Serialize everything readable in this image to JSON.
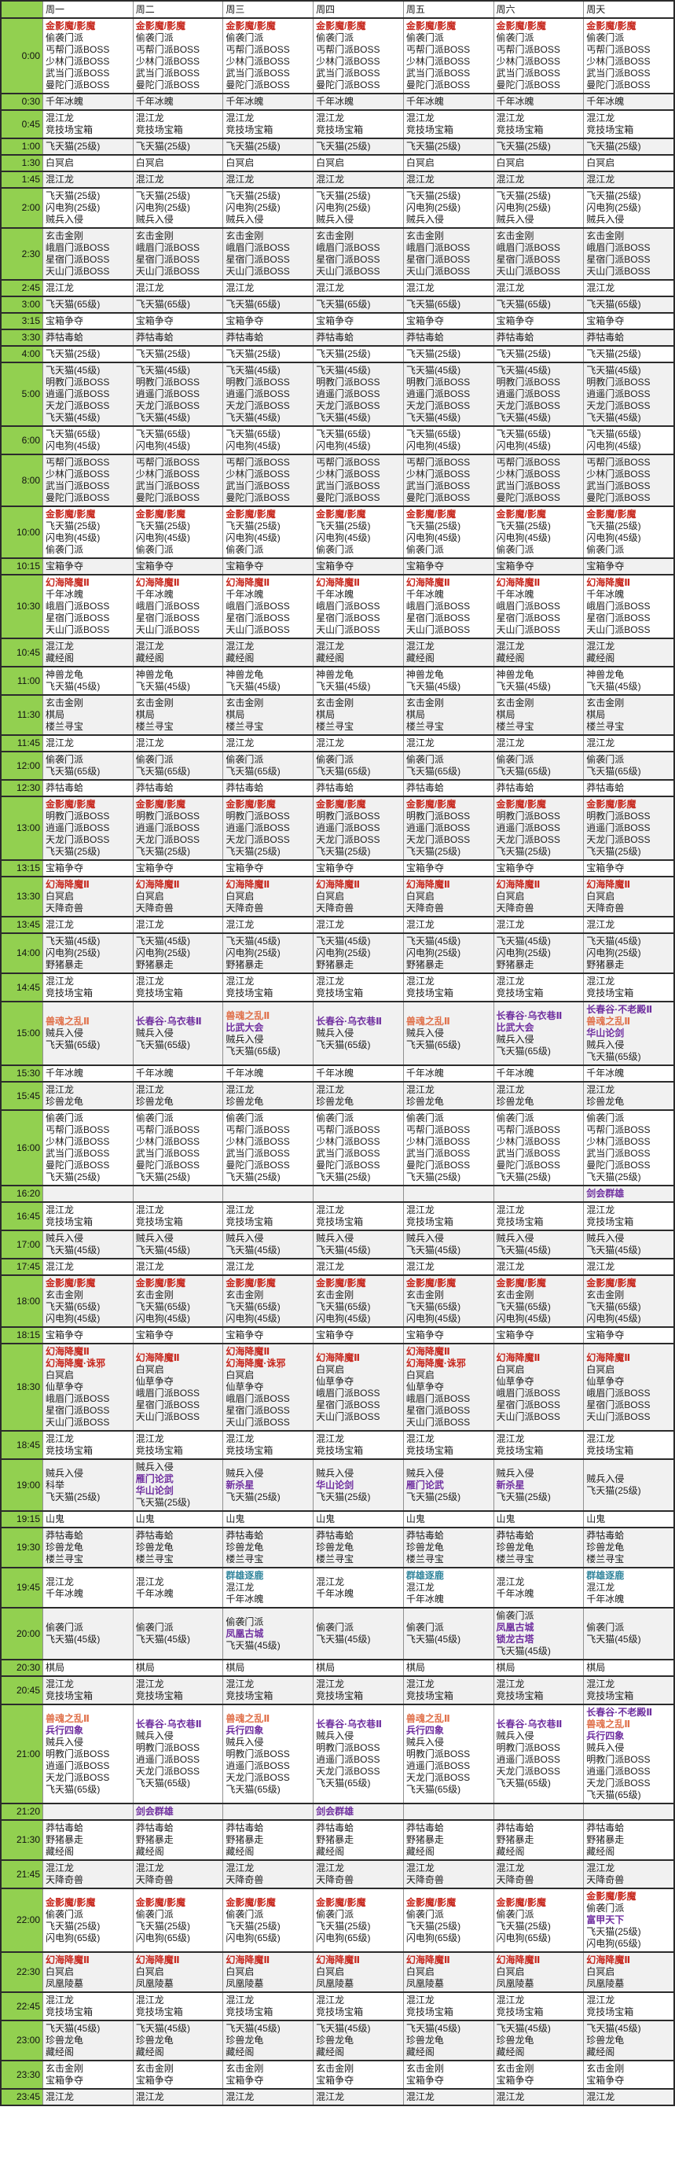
{
  "colors": {
    "red": "#c7281e",
    "orange": "#e0714b",
    "purple": "#7030a0",
    "blue": "#31859c",
    "header_green": "#92d050"
  },
  "schedule": {
    "day_headers": [
      "周一",
      "周二",
      "周三",
      "周四",
      "周五",
      "周六",
      "周天"
    ],
    "rows": [
      {
        "time": "0:00",
        "all": [
          {
            "t": "金影魔/影魔",
            "c": "red"
          },
          "偷袭门派",
          "丐帮门派BOSS",
          "少林门派BOSS",
          "武当门派BOSS",
          "曼陀门派BOSS"
        ]
      },
      {
        "time": "0:30",
        "all": [
          "千年冰魄"
        ]
      },
      {
        "time": "0:45",
        "all": [
          "混江龙",
          "竞技场宝箱"
        ]
      },
      {
        "time": "1:00",
        "all": [
          "飞天猫(25级)"
        ]
      },
      {
        "time": "1:30",
        "all": [
          "白冥启"
        ]
      },
      {
        "time": "1:45",
        "all": [
          "混江龙"
        ]
      },
      {
        "time": "2:00",
        "all": [
          "飞天猫(25级)",
          "闪电狗(25级)",
          "贼兵入侵"
        ]
      },
      {
        "time": "2:30",
        "all": [
          "玄击金刚",
          "峨眉门派BOSS",
          "星宿门派BOSS",
          "天山门派BOSS"
        ]
      },
      {
        "time": "2:45",
        "all": [
          "混江龙"
        ]
      },
      {
        "time": "3:00",
        "all": [
          "飞天猫(65级)"
        ]
      },
      {
        "time": "3:15",
        "all": [
          "宝箱争夺"
        ]
      },
      {
        "time": "3:30",
        "all": [
          "莽牯毒蛤"
        ]
      },
      {
        "time": "4:00",
        "all": [
          "飞天猫(25级)"
        ]
      },
      {
        "time": "5:00",
        "all": [
          "飞天猫(45级)",
          "明教门派BOSS",
          "逍遥门派BOSS",
          "天龙门派BOSS",
          "飞天猫(45级)"
        ]
      },
      {
        "time": "6:00",
        "all": [
          "飞天猫(65级)",
          "闪电狗(45级)"
        ]
      },
      {
        "time": "8:00",
        "all": [
          "丐帮门派BOSS",
          "少林门派BOSS",
          "武当门派BOSS",
          "曼陀门派BOSS"
        ]
      },
      {
        "time": "10:00",
        "all": [
          {
            "t": "金影魔/影魔",
            "c": "red"
          },
          "飞天猫(25级)",
          "闪电狗(45级)",
          "偷袭门派"
        ]
      },
      {
        "time": "10:15",
        "all": [
          "宝箱争夺"
        ]
      },
      {
        "time": "10:30",
        "all": [
          {
            "t": "幻海降魔Ⅱ",
            "c": "red"
          },
          "千年冰魄",
          "峨眉门派BOSS",
          "星宿门派BOSS",
          "天山门派BOSS"
        ]
      },
      {
        "time": "10:45",
        "all": [
          "混江龙",
          "藏经阁"
        ]
      },
      {
        "time": "11:00",
        "all": [
          "神兽龙龟",
          "飞天猫(45级)"
        ]
      },
      {
        "time": "11:30",
        "all": [
          "玄击金刚",
          "棋局",
          "楼兰寻宝"
        ]
      },
      {
        "time": "11:45",
        "all": [
          "混江龙"
        ]
      },
      {
        "time": "12:00",
        "all": [
          "偷袭门派",
          "飞天猫(65级)"
        ]
      },
      {
        "time": "12:30",
        "all": [
          "莽牯毒蛤"
        ]
      },
      {
        "time": "13:00",
        "all": [
          {
            "t": "金影魔/影魔",
            "c": "red"
          },
          "明教门派BOSS",
          "逍遥门派BOSS",
          "天龙门派BOSS",
          "飞天猫(25级)"
        ]
      },
      {
        "time": "13:15",
        "all": [
          "宝箱争夺"
        ]
      },
      {
        "time": "13:30",
        "all": [
          {
            "t": "幻海降魔Ⅱ",
            "c": "red"
          },
          "白冥启",
          "天降奇兽"
        ]
      },
      {
        "time": "13:45",
        "all": [
          "混江龙"
        ]
      },
      {
        "time": "14:00",
        "all": [
          "飞天猫(45级)",
          "闪电狗(25级)",
          "野猪暴走"
        ]
      },
      {
        "time": "14:45",
        "all": [
          "混江龙",
          "竞技场宝箱"
        ]
      },
      {
        "time": "15:00",
        "days": [
          [
            {
              "t": "兽魂之乱Ⅱ",
              "c": "orange"
            },
            "贼兵入侵",
            "飞天猫(65级)"
          ],
          [
            {
              "t": "长春谷·乌衣巷Ⅱ",
              "c": "purple"
            },
            "贼兵入侵",
            "飞天猫(65级)"
          ],
          [
            {
              "t": "兽魂之乱Ⅱ",
              "c": "orange"
            },
            {
              "t": "比武大会",
              "c": "purple"
            },
            "贼兵入侵",
            "飞天猫(65级)"
          ],
          [
            {
              "t": "长春谷·乌衣巷Ⅱ",
              "c": "purple"
            },
            "贼兵入侵",
            "飞天猫(65级)"
          ],
          [
            {
              "t": "兽魂之乱Ⅱ",
              "c": "orange"
            },
            "贼兵入侵",
            "飞天猫(65级)"
          ],
          [
            {
              "t": "长春谷·乌衣巷Ⅱ",
              "c": "purple"
            },
            {
              "t": "比武大会",
              "c": "purple"
            },
            "贼兵入侵",
            "飞天猫(65级)"
          ],
          [
            {
              "t": "长春谷·不老殿Ⅱ",
              "c": "purple"
            },
            {
              "t": "兽魂之乱Ⅱ",
              "c": "orange"
            },
            {
              "t": "华山论剑",
              "c": "purple"
            },
            "贼兵入侵",
            "飞天猫(65级)"
          ]
        ]
      },
      {
        "time": "15:30",
        "all": [
          "千年冰魄"
        ]
      },
      {
        "time": "15:45",
        "all": [
          "混江龙",
          "珍兽龙龟"
        ]
      },
      {
        "time": "16:00",
        "all": [
          "偷袭门派",
          "丐帮门派BOSS",
          "少林门派BOSS",
          "武当门派BOSS",
          "曼陀门派BOSS",
          "飞天猫(25级)"
        ]
      },
      {
        "time": "16:20",
        "days": [
          [],
          [],
          [],
          [],
          [],
          [],
          [
            {
              "t": "剑会群雄",
              "c": "purple"
            }
          ]
        ]
      },
      {
        "time": "16:45",
        "all": [
          "混江龙",
          "竞技场宝箱"
        ]
      },
      {
        "time": "17:00",
        "all": [
          "贼兵入侵",
          "飞天猫(45级)"
        ]
      },
      {
        "time": "17:45",
        "all": [
          "混江龙"
        ]
      },
      {
        "time": "18:00",
        "all": [
          {
            "t": "金影魔/影魔",
            "c": "red"
          },
          "玄击金刚",
          "飞天猫(65级)",
          "闪电狗(45级)"
        ]
      },
      {
        "time": "18:15",
        "all": [
          "宝箱争夺"
        ]
      },
      {
        "time": "18:30",
        "days": [
          [
            {
              "t": "幻海降魔Ⅱ",
              "c": "red"
            },
            {
              "t": "幻海降魔·诛邪",
              "c": "red"
            },
            "白冥启",
            "仙草争夺",
            "峨眉门派BOSS",
            "星宿门派BOSS",
            "天山门派BOSS"
          ],
          [
            {
              "t": "幻海降魔Ⅱ",
              "c": "red"
            },
            "白冥启",
            "仙草争夺",
            "峨眉门派BOSS",
            "星宿门派BOSS",
            "天山门派BOSS"
          ],
          [
            {
              "t": "幻海降魔Ⅱ",
              "c": "red"
            },
            {
              "t": "幻海降魔·诛邪",
              "c": "red"
            },
            "白冥启",
            "仙草争夺",
            "峨眉门派BOSS",
            "星宿门派BOSS",
            "天山门派BOSS"
          ],
          [
            {
              "t": "幻海降魔Ⅱ",
              "c": "red"
            },
            "白冥启",
            "仙草争夺",
            "峨眉门派BOSS",
            "星宿门派BOSS",
            "天山门派BOSS"
          ],
          [
            {
              "t": "幻海降魔Ⅱ",
              "c": "red"
            },
            {
              "t": "幻海降魔·诛邪",
              "c": "red"
            },
            "白冥启",
            "仙草争夺",
            "峨眉门派BOSS",
            "星宿门派BOSS",
            "天山门派BOSS"
          ],
          [
            {
              "t": "幻海降魔Ⅱ",
              "c": "red"
            },
            "白冥启",
            "仙草争夺",
            "峨眉门派BOSS",
            "星宿门派BOSS",
            "天山门派BOSS"
          ],
          [
            {
              "t": "幻海降魔Ⅱ",
              "c": "red"
            },
            "白冥启",
            "仙草争夺",
            "峨眉门派BOSS",
            "星宿门派BOSS",
            "天山门派BOSS"
          ]
        ]
      },
      {
        "time": "18:45",
        "all": [
          "混江龙",
          "竞技场宝箱"
        ]
      },
      {
        "time": "19:00",
        "days": [
          [
            "贼兵入侵",
            "科举",
            "飞天猫(25级)"
          ],
          [
            "贼兵入侵",
            {
              "t": "雁门论武",
              "c": "purple"
            },
            {
              "t": "华山论剑",
              "c": "purple"
            },
            "飞天猫(25级)"
          ],
          [
            "贼兵入侵",
            {
              "t": "新杀星",
              "c": "purple"
            },
            "飞天猫(25级)"
          ],
          [
            "贼兵入侵",
            {
              "t": "华山论剑",
              "c": "purple"
            },
            "飞天猫(25级)"
          ],
          [
            "贼兵入侵",
            {
              "t": "雁门论武",
              "c": "purple"
            },
            "飞天猫(25级)"
          ],
          [
            "贼兵入侵",
            {
              "t": "新杀星",
              "c": "purple"
            },
            "飞天猫(25级)"
          ],
          [
            "贼兵入侵",
            "飞天猫(25级)"
          ]
        ]
      },
      {
        "time": "19:15",
        "all": [
          "山鬼"
        ]
      },
      {
        "time": "19:30",
        "all": [
          "莽牯毒蛤",
          "珍兽龙龟",
          "楼兰寻宝"
        ]
      },
      {
        "time": "19:45",
        "days": [
          [
            "混江龙",
            "千年冰魄"
          ],
          [
            "混江龙",
            "千年冰魄"
          ],
          [
            {
              "t": "群雄逐鹿",
              "c": "blue"
            },
            "混江龙",
            "千年冰魄"
          ],
          [
            "混江龙",
            "千年冰魄"
          ],
          [
            {
              "t": "群雄逐鹿",
              "c": "blue"
            },
            "混江龙",
            "千年冰魄"
          ],
          [
            "混江龙",
            "千年冰魄"
          ],
          [
            {
              "t": "群雄逐鹿",
              "c": "blue"
            },
            "混江龙",
            "千年冰魄"
          ]
        ]
      },
      {
        "time": "20:00",
        "days": [
          [
            "偷袭门派",
            "飞天猫(45级)"
          ],
          [
            "偷袭门派",
            "飞天猫(45级)"
          ],
          [
            "偷袭门派",
            {
              "t": "凤凰古城",
              "c": "purple"
            },
            "飞天猫(45级)"
          ],
          [
            "偷袭门派",
            "飞天猫(45级)"
          ],
          [
            "偷袭门派",
            "飞天猫(45级)"
          ],
          [
            "偷袭门派",
            {
              "t": "凤凰古城",
              "c": "purple"
            },
            {
              "t": "锁龙古塔",
              "c": "purple"
            },
            "飞天猫(45级)"
          ],
          [
            "偷袭门派",
            "飞天猫(45级)"
          ]
        ]
      },
      {
        "time": "20:30",
        "all": [
          "棋局"
        ]
      },
      {
        "time": "20:45",
        "all": [
          "混江龙",
          "竞技场宝箱"
        ]
      },
      {
        "time": "21:00",
        "days": [
          [
            {
              "t": "兽魂之乱Ⅱ",
              "c": "orange"
            },
            {
              "t": "兵行四象",
              "c": "purple"
            },
            "贼兵入侵",
            "明教门派BOSS",
            "逍遥门派BOSS",
            "天龙门派BOSS",
            "飞天猫(65级)"
          ],
          [
            {
              "t": "长春谷·乌衣巷Ⅱ",
              "c": "purple"
            },
            "贼兵入侵",
            "明教门派BOSS",
            "逍遥门派BOSS",
            "天龙门派BOSS",
            "飞天猫(65级)"
          ],
          [
            {
              "t": "兽魂之乱Ⅱ",
              "c": "orange"
            },
            {
              "t": "兵行四象",
              "c": "purple"
            },
            "贼兵入侵",
            "明教门派BOSS",
            "逍遥门派BOSS",
            "天龙门派BOSS",
            "飞天猫(65级)"
          ],
          [
            {
              "t": "长春谷·乌衣巷Ⅱ",
              "c": "purple"
            },
            "贼兵入侵",
            "明教门派BOSS",
            "逍遥门派BOSS",
            "天龙门派BOSS",
            "飞天猫(65级)"
          ],
          [
            {
              "t": "兽魂之乱Ⅱ",
              "c": "orange"
            },
            {
              "t": "兵行四象",
              "c": "purple"
            },
            "贼兵入侵",
            "明教门派BOSS",
            "逍遥门派BOSS",
            "天龙门派BOSS",
            "飞天猫(65级)"
          ],
          [
            {
              "t": "长春谷·乌衣巷Ⅱ",
              "c": "purple"
            },
            "贼兵入侵",
            "明教门派BOSS",
            "逍遥门派BOSS",
            "天龙门派BOSS",
            "飞天猫(65级)"
          ],
          [
            {
              "t": "长春谷·不老殿Ⅱ",
              "c": "purple"
            },
            {
              "t": "兽魂之乱Ⅱ",
              "c": "orange"
            },
            {
              "t": "兵行四象",
              "c": "purple"
            },
            "贼兵入侵",
            "明教门派BOSS",
            "逍遥门派BOSS",
            "天龙门派BOSS",
            "飞天猫(65级)"
          ]
        ]
      },
      {
        "time": "21:20",
        "days": [
          [],
          [
            {
              "t": "剑会群雄",
              "c": "purple"
            }
          ],
          [],
          [
            {
              "t": "剑会群雄",
              "c": "purple"
            }
          ],
          [],
          [],
          []
        ]
      },
      {
        "time": "21:30",
        "all": [
          "莽牯毒蛤",
          "野猪暴走",
          "藏经阁"
        ]
      },
      {
        "time": "21:45",
        "all": [
          "混江龙",
          "天降奇兽"
        ]
      },
      {
        "time": "22:00",
        "days": [
          [
            {
              "t": "金影魔/影魔",
              "c": "red"
            },
            "偷袭门派",
            "飞天猫(25级)",
            "闪电狗(65级)"
          ],
          [
            {
              "t": "金影魔/影魔",
              "c": "red"
            },
            "偷袭门派",
            "飞天猫(25级)",
            "闪电狗(65级)"
          ],
          [
            {
              "t": "金影魔/影魔",
              "c": "red"
            },
            "偷袭门派",
            "飞天猫(25级)",
            "闪电狗(65级)"
          ],
          [
            {
              "t": "金影魔/影魔",
              "c": "red"
            },
            "偷袭门派",
            "飞天猫(25级)",
            "闪电狗(65级)"
          ],
          [
            {
              "t": "金影魔/影魔",
              "c": "red"
            },
            "偷袭门派",
            "飞天猫(25级)",
            "闪电狗(65级)"
          ],
          [
            {
              "t": "金影魔/影魔",
              "c": "red"
            },
            "偷袭门派",
            "飞天猫(25级)",
            "闪电狗(65级)"
          ],
          [
            {
              "t": "金影魔/影魔",
              "c": "red"
            },
            "偷袭门派",
            {
              "t": "富甲天下",
              "c": "purple"
            },
            "飞天猫(25级)",
            "闪电狗(65级)"
          ]
        ]
      },
      {
        "time": "22:30",
        "all": [
          {
            "t": "幻海降魔Ⅱ",
            "c": "red"
          },
          "白冥启",
          "凤凰陵墓"
        ]
      },
      {
        "time": "22:45",
        "all": [
          "混江龙",
          "竞技场宝箱"
        ]
      },
      {
        "time": "23:00",
        "all": [
          "飞天猫(45级)",
          "珍兽龙龟",
          "藏经阁"
        ]
      },
      {
        "time": "23:30",
        "all": [
          "玄击金刚",
          "宝箱争夺"
        ]
      },
      {
        "time": "23:45",
        "all": [
          "混江龙"
        ]
      }
    ]
  }
}
